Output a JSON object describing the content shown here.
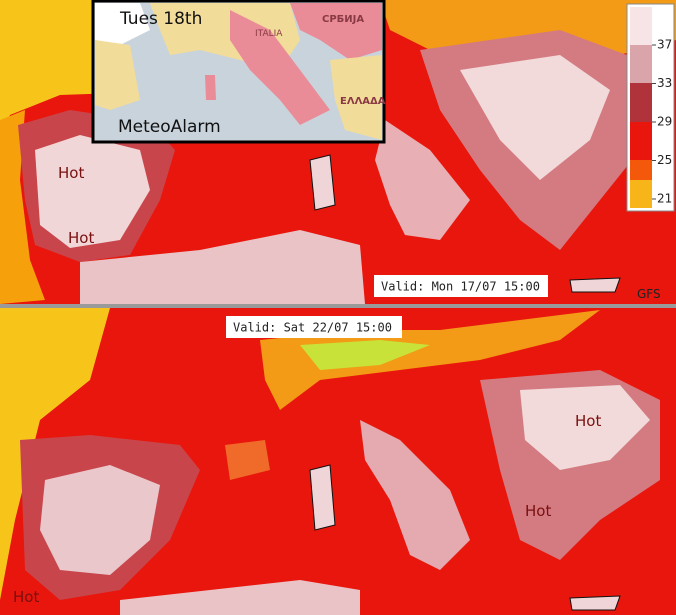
{
  "top_panel": {
    "inset": {
      "title": "Tues 18th",
      "source": "MeteoAlarm",
      "labels": [
        "ITALIA",
        "СРБИЈА",
        "ΕΛΛΑΔΑ"
      ]
    },
    "hot_labels": [
      "Hot",
      "Hot"
    ],
    "valid": "Valid: Mon 17/07 15:00",
    "model": "GFS",
    "colorbar": {
      "ticks": [
        21,
        25,
        29,
        33,
        37
      ]
    }
  },
  "bottom_panel": {
    "valid": "Valid: Sat 22/07 15:00",
    "hot_labels": [
      "Hot",
      "Hot",
      "Hot"
    ]
  }
}
